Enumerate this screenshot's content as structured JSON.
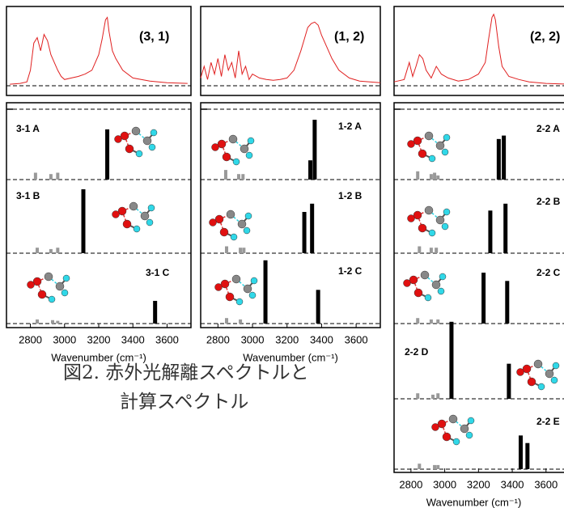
{
  "chart_data": [
    {
      "type": "stick",
      "title": "(3, 1)",
      "xlim": [
        2660,
        3740
      ],
      "xticks": [
        2800,
        3000,
        3200,
        3400,
        3600
      ],
      "xlabel": "Wavenumber (cm⁻¹)",
      "spectrum": {
        "color": "#e02020",
        "ylim": [
          -12.5,
          100
        ],
        "x": [
          2680,
          2740,
          2780,
          2800,
          2820,
          2840,
          2860,
          2880,
          2900,
          2920,
          2940,
          2960,
          2980,
          3000,
          3040,
          3080,
          3120,
          3160,
          3180,
          3200,
          3220,
          3240,
          3250,
          3260,
          3280,
          3300,
          3340,
          3400,
          3500,
          3600,
          3720
        ],
        "values": [
          2,
          3,
          5,
          20,
          55,
          62,
          45,
          66,
          58,
          40,
          30,
          20,
          12,
          8,
          10,
          12,
          15,
          20,
          30,
          40,
          60,
          85,
          88,
          70,
          45,
          35,
          20,
          10,
          6,
          4,
          3
        ]
      },
      "panels": [
        {
          "label": "3-1 A",
          "ylim": [
            0,
            100
          ],
          "series": [
            {
              "color": "#000000",
              "x": [
                3250
              ],
              "values": [
                73
              ]
            },
            {
              "color": "#999999",
              "x": [
                2830,
                2920,
                2960
              ],
              "values": [
                10,
                8,
                10
              ]
            }
          ]
        },
        {
          "label": "3-1 B",
          "ylim": [
            0,
            100
          ],
          "series": [
            {
              "color": "#000000",
              "x": [
                3110
              ],
              "values": [
                93
              ]
            },
            {
              "color": "#999999",
              "x": [
                2840,
                2920,
                2960
              ],
              "values": [
                8,
                6,
                8
              ]
            }
          ]
        },
        {
          "label": "3-1 C",
          "ylim": [
            0,
            100
          ],
          "series": [
            {
              "color": "#000000",
              "x": [
                3530
              ],
              "values": [
                33
              ]
            },
            {
              "color": "#999999",
              "x": [
                2840,
                2930,
                2960
              ],
              "values": [
                6,
                5,
                4
              ]
            }
          ]
        }
      ]
    },
    {
      "type": "stick",
      "title": "(1, 2)",
      "xlim": [
        2700,
        3740
      ],
      "xticks": [
        2800,
        3000,
        3200,
        3400,
        3600
      ],
      "xlabel": "Wavenumber (cm⁻¹)",
      "spectrum": {
        "color": "#e02020",
        "ylim": [
          -12.5,
          100
        ],
        "x": [
          2700,
          2720,
          2740,
          2760,
          2780,
          2800,
          2820,
          2840,
          2860,
          2880,
          2900,
          2920,
          2940,
          2960,
          2980,
          3000,
          3040,
          3080,
          3120,
          3160,
          3200,
          3240,
          3280,
          3300,
          3320,
          3340,
          3360,
          3380,
          3400,
          3420,
          3460,
          3500,
          3560,
          3620,
          3740
        ],
        "values": [
          10,
          25,
          8,
          30,
          15,
          35,
          12,
          40,
          20,
          30,
          10,
          45,
          15,
          25,
          8,
          15,
          10,
          8,
          7,
          8,
          10,
          20,
          45,
          60,
          75,
          80,
          82,
          78,
          65,
          55,
          35,
          20,
          10,
          6,
          4
        ]
      },
      "panels": [
        {
          "label": "1-2 A",
          "ylim": [
            0,
            100
          ],
          "series": [
            {
              "color": "#000000",
              "x": [
                3335,
                3360
              ],
              "values": [
                28,
                87
              ]
            },
            {
              "color": "#999999",
              "x": [
                2845,
                2920,
                2945
              ],
              "values": [
                14,
                8,
                8
              ]
            }
          ]
        },
        {
          "label": "1-2 B",
          "ylim": [
            0,
            100
          ],
          "series": [
            {
              "color": "#000000",
              "x": [
                3300,
                3345
              ],
              "values": [
                60,
                72
              ]
            },
            {
              "color": "#999999",
              "x": [
                2850,
                2930,
                2950
              ],
              "values": [
                10,
                8,
                8
              ]
            }
          ]
        },
        {
          "label": "1-2 C",
          "ylim": [
            0,
            100
          ],
          "series": [
            {
              "color": "#000000",
              "x": [
                3075,
                3380
              ],
              "values": [
                92,
                49
              ]
            },
            {
              "color": "#999999",
              "x": [
                2850,
                2930
              ],
              "values": [
                8,
                6
              ]
            }
          ]
        }
      ]
    },
    {
      "type": "stick",
      "title": "(2, 2)",
      "xlim": [
        2700,
        3740
      ],
      "xticks": [
        2800,
        3000,
        3200,
        3400,
        3600
      ],
      "xlabel": "Wavenumber (cm⁻¹)",
      "spectrum": {
        "color": "#e02020",
        "ylim": [
          -12.5,
          100
        ],
        "x": [
          2700,
          2760,
          2790,
          2810,
          2830,
          2850,
          2870,
          2890,
          2920,
          2950,
          2980,
          3020,
          3080,
          3140,
          3200,
          3240,
          3260,
          3280,
          3290,
          3300,
          3320,
          3340,
          3380,
          3440,
          3500,
          3600,
          3740
        ],
        "values": [
          5,
          8,
          30,
          12,
          25,
          40,
          35,
          20,
          10,
          25,
          15,
          10,
          6,
          8,
          15,
          30,
          60,
          88,
          92,
          85,
          50,
          25,
          12,
          8,
          5,
          3,
          2
        ]
      },
      "panels": [
        {
          "label": "2-2 A",
          "ylim": [
            0,
            100
          ],
          "series": [
            {
              "color": "#000000",
              "x": [
                3320,
                3350
              ],
              "values": [
                59,
                64
              ]
            },
            {
              "color": "#999999",
              "x": [
                2840,
                2920,
                2940,
                2960
              ],
              "values": [
                12,
                8,
                10,
                6
              ]
            }
          ]
        },
        {
          "label": "2-2 B",
          "ylim": [
            0,
            100
          ],
          "series": [
            {
              "color": "#000000",
              "x": [
                3270,
                3360
              ],
              "values": [
                62,
                72
              ]
            },
            {
              "color": "#999999",
              "x": [
                2850,
                2920,
                2950
              ],
              "values": [
                10,
                8,
                8
              ]
            }
          ]
        },
        {
          "label": "2-2 C",
          "ylim": [
            0,
            100
          ],
          "series": [
            {
              "color": "#000000",
              "x": [
                3230,
                3370
              ],
              "values": [
                74,
                62
              ]
            },
            {
              "color": "#999999",
              "x": [
                2840,
                2920,
                2960
              ],
              "values": [
                8,
                6,
                6
              ]
            }
          ]
        },
        {
          "label": "2-2 D",
          "ylim": [
            0,
            100
          ],
          "series": [
            {
              "color": "#000000",
              "x": [
                3040,
                3380
              ],
              "values": [
                112,
                51
              ]
            },
            {
              "color": "#999999",
              "x": [
                2840,
                2930,
                2960
              ],
              "values": [
                8,
                6,
                8
              ]
            }
          ]
        },
        {
          "label": "2-2 E",
          "ylim": [
            0,
            100
          ],
          "series": [
            {
              "color": "#000000",
              "x": [
                3450,
                3490
              ],
              "values": [
                49,
                38
              ]
            },
            {
              "color": "#999999",
              "x": [
                2850,
                2940,
                2960
              ],
              "values": [
                8,
                6,
                6
              ]
            }
          ]
        }
      ]
    }
  ],
  "caption": [
    "図2. 赤外光解離スペクトルと",
    "計算スペクトル"
  ]
}
